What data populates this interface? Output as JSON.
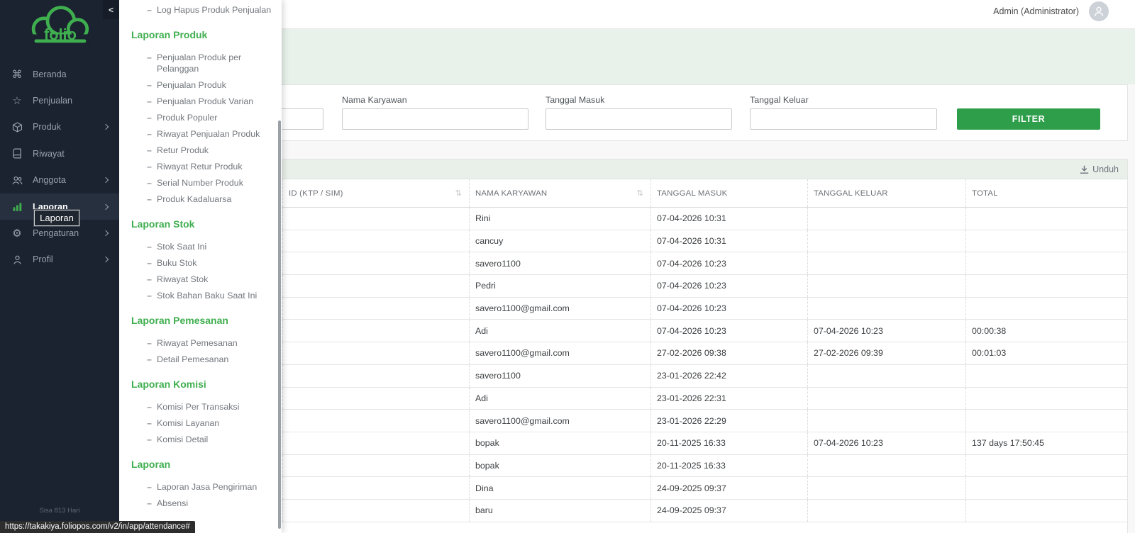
{
  "browser": {
    "status_url": "https://takakiya.foliopos.com/v2/in/app/attendance#"
  },
  "header": {
    "user_label": "Admin (Administrator)",
    "avatar_icon": "person-icon"
  },
  "sidebar": {
    "logo_text": "folio",
    "collapse_icon": "chevron-left-icon",
    "items": [
      {
        "label": "Beranda",
        "icon": "command-icon",
        "has_submenu": false,
        "active": false
      },
      {
        "label": "Penjualan",
        "icon": "star-icon",
        "has_submenu": false,
        "active": false
      },
      {
        "label": "Produk",
        "icon": "cube-icon",
        "has_submenu": true,
        "active": false
      },
      {
        "label": "Riwayat",
        "icon": "book-icon",
        "has_submenu": false,
        "active": false
      },
      {
        "label": "Anggota",
        "icon": "users-icon",
        "has_submenu": true,
        "active": false
      },
      {
        "label": "Laporan",
        "icon": "bar-chart-icon",
        "has_submenu": true,
        "active": true
      },
      {
        "label": "Pengaturan",
        "icon": "gear-icon",
        "has_submenu": true,
        "active": false
      },
      {
        "label": "Profil",
        "icon": "user-icon",
        "has_submenu": true,
        "active": false
      }
    ],
    "tooltip": "Laporan",
    "footer_note": "Sisa 813 Hari"
  },
  "submenu": {
    "leading_items": [
      "Log Hapus Produk Penjualan"
    ],
    "sections": [
      {
        "title": "Laporan Produk",
        "items": [
          "Penjualan Produk per Pelanggan",
          "Penjualan Produk",
          "Penjualan Produk Varian",
          "Produk Populer",
          "Riwayat Penjualan Produk",
          "Retur Produk",
          "Riwayat Retur Produk",
          "Serial Number Produk",
          "Produk Kadaluarsa"
        ]
      },
      {
        "title": "Laporan Stok",
        "items": [
          "Stok Saat Ini",
          "Buku Stok",
          "Riwayat Stok",
          "Stok Bahan Baku Saat Ini"
        ]
      },
      {
        "title": "Laporan Pemesanan",
        "items": [
          "Riwayat Pemesanan",
          "Detail Pemesanan"
        ]
      },
      {
        "title": "Laporan Komisi",
        "items": [
          "Komisi Per Transaksi",
          "Komisi Layanan",
          "Komisi Detail"
        ]
      },
      {
        "title": "Laporan",
        "items": [
          "Laporan Jasa Pengiriman",
          "Absensi"
        ]
      }
    ]
  },
  "filters": {
    "fields": [
      {
        "label": "",
        "value": ""
      },
      {
        "label": "Nama Karyawan",
        "value": ""
      },
      {
        "label": "Tanggal Masuk",
        "value": ""
      },
      {
        "label": "Tanggal Keluar",
        "value": ""
      }
    ],
    "button_label": "FILTER"
  },
  "table": {
    "download_label": "Unduh",
    "download_icon": "download-icon",
    "columns": [
      "ID (KTP / SIM)",
      "NAMA KARYAWAN",
      "TANGGAL MASUK",
      "TANGGAL KELUAR",
      "TOTAL"
    ],
    "sortable_columns": [
      0,
      1
    ],
    "rows": [
      [
        "",
        "Rini",
        "07-04-2026 10:31",
        "",
        ""
      ],
      [
        "",
        "cancuy",
        "07-04-2026 10:31",
        "",
        ""
      ],
      [
        "",
        "savero1100",
        "07-04-2026 10:23",
        "",
        ""
      ],
      [
        "",
        "Pedri",
        "07-04-2026 10:23",
        "",
        ""
      ],
      [
        "",
        "savero1100@gmail.com",
        "07-04-2026 10:23",
        "",
        ""
      ],
      [
        "",
        "Adi",
        "07-04-2026 10:23",
        "07-04-2026 10:23",
        "00:00:38"
      ],
      [
        "",
        "savero1100@gmail.com",
        "27-02-2026 09:38",
        "27-02-2026 09:39",
        "00:01:03"
      ],
      [
        "",
        "savero1100",
        "23-01-2026 22:42",
        "",
        ""
      ],
      [
        "",
        "Adi",
        "23-01-2026 22:31",
        "",
        ""
      ],
      [
        "",
        "savero1100@gmail.com",
        "23-01-2026 22:29",
        "",
        ""
      ],
      [
        "",
        "bopak",
        "20-11-2025 16:33",
        "07-04-2026 10:23",
        "137 days 17:50:45"
      ],
      [
        "",
        "bopak",
        "20-11-2025 16:33",
        "",
        ""
      ],
      [
        "",
        "Dina",
        "24-09-2025 09:37",
        "",
        ""
      ],
      [
        "",
        "baru",
        "24-09-2025 09:37",
        "",
        ""
      ]
    ]
  },
  "colors": {
    "accent_green": "#3fae4f",
    "button_green": "#2e9e4a",
    "page_band_green": "#e8f2ea",
    "table_band_green": "#e9efe9",
    "sidebar_bg": "#1b2330"
  }
}
